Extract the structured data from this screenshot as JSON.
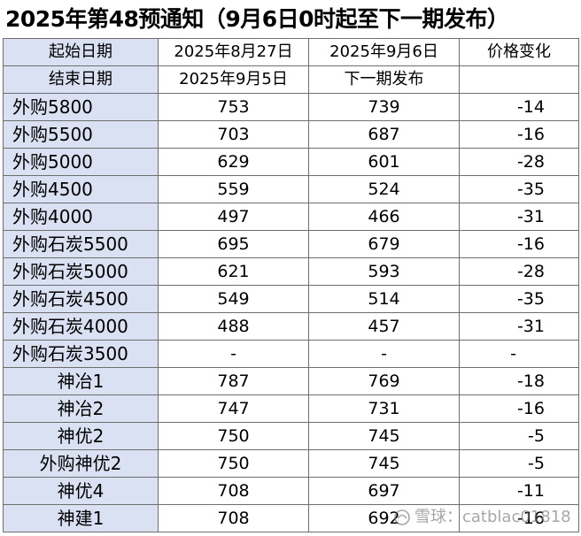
{
  "title": "2025年第48预通知（9月6日0时起至下一期发布）",
  "header": {
    "start_label": "起始日期",
    "end_label": "结束日期",
    "col1_start": "2025年8月27日",
    "col1_end": "2025年9月5日",
    "col2_start": "2025年9月6日",
    "col2_end": "下一期发布",
    "col3_title": "价格变化",
    "col3_end": ""
  },
  "rows": [
    {
      "name": "外购5800",
      "old": "753",
      "new": "739",
      "change": "-14"
    },
    {
      "name": "外购5500",
      "old": "703",
      "new": "687",
      "change": "-16"
    },
    {
      "name": "外购5000",
      "old": "629",
      "new": "601",
      "change": "-28"
    },
    {
      "name": "外购4500",
      "old": "559",
      "new": "524",
      "change": "-35"
    },
    {
      "name": "外购4000",
      "old": "497",
      "new": "466",
      "change": "-31"
    },
    {
      "name": "外购石炭5500",
      "old": "695",
      "new": "679",
      "change": "-16"
    },
    {
      "name": "外购石炭5000",
      "old": "621",
      "new": "593",
      "change": "-28"
    },
    {
      "name": "外购石炭4500",
      "old": "549",
      "new": "514",
      "change": "-35"
    },
    {
      "name": "外购石炭4000",
      "old": "488",
      "new": "457",
      "change": "-31"
    },
    {
      "name": "外购石炭3500",
      "old": "-",
      "new": "-",
      "change": "-"
    },
    {
      "name": "神冶1",
      "old": "787",
      "new": "769",
      "change": "-18"
    },
    {
      "name": "神冶2",
      "old": "747",
      "new": "731",
      "change": "-16"
    },
    {
      "name": "神优2",
      "old": "750",
      "new": "745",
      "change": "-5"
    },
    {
      "name": "外购神优2",
      "old": "750",
      "new": "745",
      "change": "-5"
    },
    {
      "name": "神优4",
      "old": "708",
      "new": "697",
      "change": "-11"
    },
    {
      "name": "神建1",
      "old": "708",
      "new": "692",
      "change": "-16"
    }
  ],
  "watermark": {
    "text": "雪球：catblac01818",
    "icon": "snowball-logo-icon"
  },
  "colors": {
    "label_bg": "#d9e1f2",
    "border": "#6e6e6e"
  }
}
